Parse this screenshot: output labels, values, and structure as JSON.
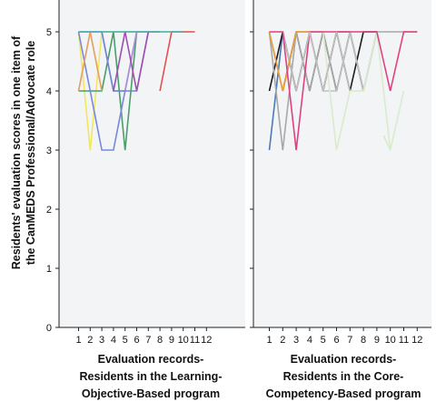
{
  "chart_data": {
    "type": "line",
    "ylabel": {
      "line1": "Residents' evaluation scores in one item of",
      "line2": "the CanMEDS Professional/Advocate role"
    },
    "ylim": [
      0,
      5
    ],
    "yticks": [
      0,
      1,
      2,
      3,
      4,
      5
    ],
    "xticks": [
      1,
      2,
      3,
      4,
      5,
      6,
      7,
      8,
      9,
      10,
      11,
      12
    ],
    "grid": false,
    "background": "#f3f4f6",
    "panels": [
      {
        "xlabel": {
          "line1": "Evaluation records-",
          "line2": "Residents in the Learning-",
          "line3": "Objective-Based program"
        },
        "series": [
          {
            "color": "#f2ef9a",
            "x": [
              1,
              2,
              3,
              4,
              5,
              6,
              7,
              8,
              9,
              10,
              11
            ],
            "y": [
              5,
              5,
              5,
              5,
              5,
              5,
              5,
              5,
              5,
              5,
              5
            ]
          },
          {
            "color": "#c8e6a0",
            "x": [
              1,
              2,
              3,
              4,
              5,
              6
            ],
            "y": [
              5,
              5,
              4,
              5,
              5,
              5
            ]
          },
          {
            "color": "#b8dce8",
            "x": [
              1,
              2,
              3,
              4,
              5,
              6,
              7
            ],
            "y": [
              4,
              5,
              5,
              4,
              5,
              5,
              5
            ]
          },
          {
            "color": "#f0e860",
            "x": [
              1,
              2,
              3,
              4
            ],
            "y": [
              5,
              3,
              5,
              5
            ]
          },
          {
            "color": "#4a9e6a",
            "x": [
              1,
              2,
              3,
              4,
              5,
              6
            ],
            "y": [
              4,
              4,
              4,
              5,
              3,
              5
            ]
          },
          {
            "color": "#7788dd",
            "x": [
              1,
              2,
              3,
              4,
              5,
              6
            ],
            "y": [
              5,
              4,
              3,
              3,
              4,
              5
            ]
          },
          {
            "color": "#b08cd8",
            "x": [
              1,
              2,
              3,
              4,
              5,
              6,
              7
            ],
            "y": [
              5,
              5,
              5,
              4,
              4,
              5,
              5
            ]
          },
          {
            "color": "#6a8ad0",
            "x": [
              3,
              4,
              5,
              6,
              7
            ],
            "y": [
              5,
              4,
              4,
              4,
              5
            ]
          },
          {
            "color": "#a050b0",
            "x": [
              4,
              5,
              6,
              7,
              8
            ],
            "y": [
              4,
              5,
              4,
              5,
              5
            ]
          },
          {
            "color": "#e8a060",
            "x": [
              1,
              2,
              3
            ],
            "y": [
              4,
              5,
              4
            ]
          },
          {
            "color": "#e05050",
            "x": [
              8,
              9,
              10,
              11
            ],
            "y": [
              4,
              5,
              5,
              5
            ]
          },
          {
            "color": "#40b0b0",
            "x": [
              1,
              2,
              3,
              4,
              5,
              6,
              7,
              8,
              9,
              10
            ],
            "y": [
              5,
              5,
              5,
              5,
              5,
              5,
              5,
              5,
              5,
              5
            ]
          }
        ]
      },
      {
        "xlabel": {
          "line1": "Evaluation records-",
          "line2": "Residents in the Core-",
          "line3": "Competency-Based program"
        },
        "series": [
          {
            "color": "#4a7ab8",
            "x": [
              1,
              2,
              3,
              4,
              5
            ],
            "y": [
              3,
              5,
              4,
              5,
              5
            ]
          },
          {
            "color": "#1a1a1a",
            "x": [
              1,
              2,
              3,
              4,
              5,
              6,
              7,
              8,
              9
            ],
            "y": [
              4,
              5,
              4,
              5,
              4,
              5,
              4,
              5,
              5
            ]
          },
          {
            "color": "#1a1a1a",
            "x": [
              2,
              3,
              4,
              5,
              6,
              7,
              8
            ],
            "y": [
              4,
              5,
              4,
              5,
              4,
              5,
              4
            ]
          },
          {
            "color": "#a8a8a8",
            "x": [
              1,
              2,
              3,
              4,
              5,
              6,
              7,
              8,
              9,
              10,
              11,
              12
            ],
            "y": [
              5,
              3,
              5,
              4,
              5,
              4,
              5,
              4,
              5,
              5,
              5,
              5
            ]
          },
          {
            "color": "#7a7a7a",
            "x": [
              1,
              2,
              3,
              4,
              5,
              6,
              7,
              8,
              9
            ],
            "y": [
              5,
              4,
              5,
              5,
              4,
              5,
              5,
              4,
              5
            ]
          },
          {
            "color": "#c0c0c0",
            "x": [
              2,
              3,
              4,
              5,
              6,
              7,
              8,
              9
            ],
            "y": [
              5,
              4,
              5,
              4,
              4,
              5,
              4,
              5
            ]
          },
          {
            "color": "#f0a030",
            "x": [
              1,
              2,
              3,
              4,
              5
            ],
            "y": [
              5,
              4,
              5,
              5,
              5
            ]
          },
          {
            "color": "#d8eccc",
            "x": [
              4,
              5,
              6,
              7,
              8,
              9,
              10,
              11
            ],
            "y": [
              5,
              5,
              3,
              4,
              4,
              5,
              3,
              4
            ]
          },
          {
            "color": "#d8eccc",
            "x": [
              9.5,
              10
            ],
            "y": [
              3.25,
              3
            ]
          },
          {
            "color": "#e04080",
            "x": [
              1,
              2,
              3,
              4,
              5,
              6,
              7,
              8,
              9,
              10,
              11,
              12
            ],
            "y": [
              5,
              5,
              3,
              5,
              5,
              5,
              5,
              5,
              5,
              4,
              5,
              5
            ]
          },
          {
            "color": "#c0c0c0",
            "x": [
              3,
              4,
              5,
              6,
              7
            ],
            "y": [
              4,
              5,
              4,
              5,
              4
            ]
          }
        ]
      }
    ]
  }
}
